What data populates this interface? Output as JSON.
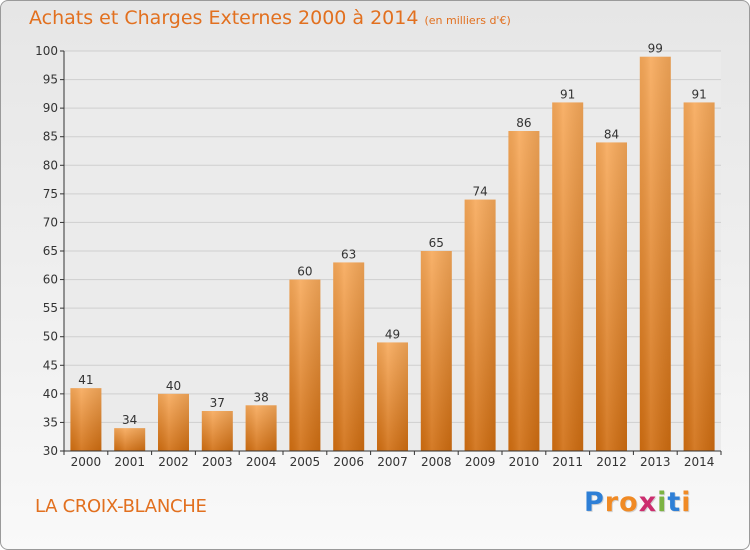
{
  "header": {
    "title": "Achats et Charges Externes 2000 à 2014",
    "subtitle": "(en milliers d'€)"
  },
  "footer": {
    "commune": "LA CROIX-BLANCHE",
    "logo": {
      "text": "Proxiti",
      "letters": [
        {
          "char": "P",
          "color": "#2e7fd6"
        },
        {
          "char": "r",
          "color": "#f08a24"
        },
        {
          "char": "o",
          "color": "#f08a24"
        },
        {
          "char": "x",
          "color": "#cc2e6f"
        },
        {
          "char": "i",
          "color": "#7cb342"
        },
        {
          "char": "t",
          "color": "#2e7fd6"
        },
        {
          "char": "i",
          "color": "#f08a24"
        }
      ]
    }
  },
  "chart_data": {
    "type": "bar",
    "title": "Achats et Charges Externes 2000 à 2014",
    "subtitle": "(en milliers d'€)",
    "xlabel": "",
    "ylabel": "",
    "categories": [
      "2000",
      "2001",
      "2002",
      "2003",
      "2004",
      "2005",
      "2006",
      "2007",
      "2008",
      "2009",
      "2010",
      "2011",
      "2012",
      "2013",
      "2014"
    ],
    "values": [
      41,
      34,
      40,
      37,
      38,
      60,
      63,
      49,
      65,
      74,
      86,
      91,
      84,
      99,
      91
    ],
    "ylim": [
      30,
      100
    ],
    "yticks": [
      30,
      35,
      40,
      45,
      50,
      55,
      60,
      65,
      70,
      75,
      80,
      85,
      90,
      95,
      100
    ],
    "grid": true,
    "legend": "none",
    "colors": {
      "bar_top": "#f7a95a",
      "bar_bottom": "#d06d10",
      "label": "#333333",
      "axis": "#333333",
      "grid": "#cfcfcf",
      "plot_bg": "#ebebeb"
    }
  }
}
